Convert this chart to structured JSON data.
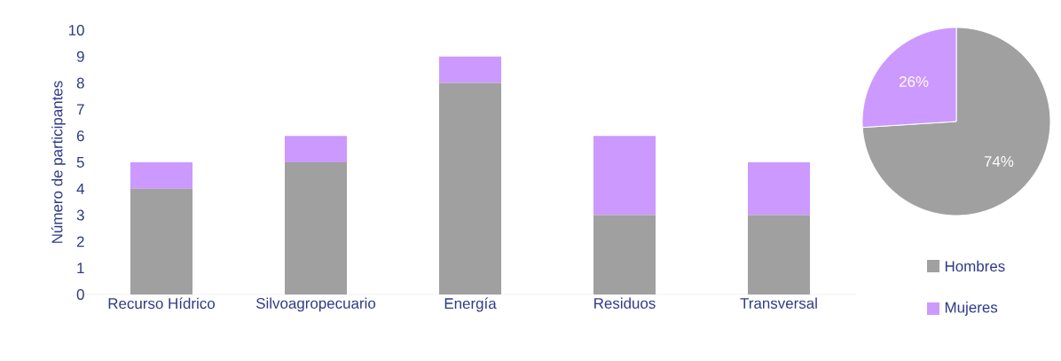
{
  "chart_data": [
    {
      "type": "bar",
      "stacked": true,
      "ylabel": "Número de participantes",
      "categories": [
        "Recurso Hídrico",
        "Silvoagropecuario",
        "Energía",
        "Residuos",
        "Transversal"
      ],
      "series": [
        {
          "name": "Hombres",
          "color": "#a0a0a0",
          "values": [
            4,
            5,
            8,
            3,
            3
          ]
        },
        {
          "name": "Mujeres",
          "color": "#cc99ff",
          "values": [
            1,
            1,
            1,
            3,
            2
          ]
        }
      ],
      "ylim": [
        0,
        10
      ],
      "yticks": [
        0,
        1,
        2,
        3,
        4,
        5,
        6,
        7,
        8,
        9,
        10
      ],
      "grid": false,
      "legend": "right"
    },
    {
      "type": "pie",
      "categories": [
        null,
        null
      ],
      "values": [
        74,
        26
      ],
      "colors": [
        "#a0a0a0",
        "#cc99ff"
      ],
      "value_labels": [
        "74%",
        "26%"
      ]
    }
  ]
}
